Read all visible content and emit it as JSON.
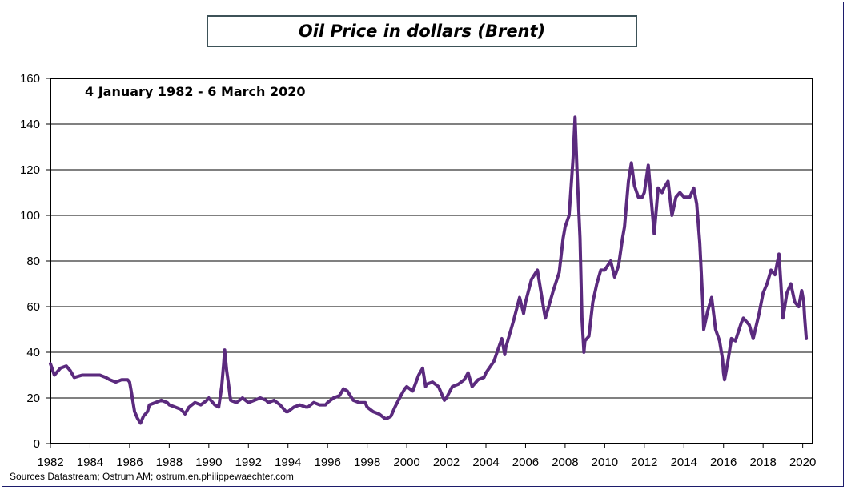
{
  "title": "Oil Price  in dollars (Brent)",
  "source": "Sources Datastream; Ostrum AM;  ostrum.en.philippewaechter.com",
  "colors": {
    "series": "#5b2a7e",
    "grid": "#000000",
    "frame": "#1c1c6b",
    "title_border": "#3d5258"
  },
  "chart_data": {
    "type": "line",
    "title": "Oil Price  in dollars (Brent)",
    "subtitle": "4 January 1982 - 6 March 2020",
    "xlabel": "",
    "ylabel": "",
    "xlim": [
      1982,
      2020.5
    ],
    "ylim": [
      0,
      160
    ],
    "grid": "horizontal",
    "x_ticks": [
      "1982",
      "1984",
      "1986",
      "1988",
      "1990",
      "1992",
      "1994",
      "1996",
      "1998",
      "2000",
      "2002",
      "2004",
      "2006",
      "2008",
      "2010",
      "2012",
      "2014",
      "2016",
      "2018",
      "2020"
    ],
    "y_ticks": [
      "0",
      "20",
      "40",
      "60",
      "80",
      "100",
      "120",
      "140",
      "160"
    ],
    "series": [
      {
        "points": [
          [
            1982.0,
            35
          ],
          [
            1982.2,
            30
          ],
          [
            1982.5,
            33
          ],
          [
            1982.8,
            34
          ],
          [
            1983.0,
            32
          ],
          [
            1983.2,
            29
          ],
          [
            1983.6,
            30
          ],
          [
            1984.0,
            30
          ],
          [
            1984.5,
            30
          ],
          [
            1984.8,
            29
          ],
          [
            1985.0,
            28
          ],
          [
            1985.3,
            27
          ],
          [
            1985.6,
            28
          ],
          [
            1985.9,
            28
          ],
          [
            1986.0,
            27
          ],
          [
            1986.1,
            22
          ],
          [
            1986.25,
            14
          ],
          [
            1986.4,
            11
          ],
          [
            1986.55,
            9
          ],
          [
            1986.7,
            12
          ],
          [
            1986.9,
            14
          ],
          [
            1987.0,
            17
          ],
          [
            1987.3,
            18
          ],
          [
            1987.6,
            19
          ],
          [
            1987.9,
            18
          ],
          [
            1988.0,
            17
          ],
          [
            1988.3,
            16
          ],
          [
            1988.6,
            15
          ],
          [
            1988.8,
            13
          ],
          [
            1989.0,
            16
          ],
          [
            1989.3,
            18
          ],
          [
            1989.6,
            17
          ],
          [
            1989.9,
            19
          ],
          [
            1990.0,
            20
          ],
          [
            1990.3,
            17
          ],
          [
            1990.5,
            16
          ],
          [
            1990.65,
            25
          ],
          [
            1990.75,
            35
          ],
          [
            1990.8,
            41
          ],
          [
            1990.9,
            32
          ],
          [
            1991.0,
            26
          ],
          [
            1991.1,
            19
          ],
          [
            1991.4,
            18
          ],
          [
            1991.7,
            20
          ],
          [
            1992.0,
            18
          ],
          [
            1992.3,
            19
          ],
          [
            1992.6,
            20
          ],
          [
            1992.9,
            19
          ],
          [
            1993.0,
            18
          ],
          [
            1993.3,
            19
          ],
          [
            1993.6,
            17
          ],
          [
            1993.9,
            14
          ],
          [
            1994.0,
            14
          ],
          [
            1994.3,
            16
          ],
          [
            1994.6,
            17
          ],
          [
            1994.9,
            16
          ],
          [
            1995.0,
            16
          ],
          [
            1995.3,
            18
          ],
          [
            1995.6,
            17
          ],
          [
            1995.9,
            17
          ],
          [
            1996.0,
            18
          ],
          [
            1996.3,
            20
          ],
          [
            1996.6,
            21
          ],
          [
            1996.8,
            24
          ],
          [
            1997.0,
            23
          ],
          [
            1997.3,
            19
          ],
          [
            1997.6,
            18
          ],
          [
            1997.9,
            18
          ],
          [
            1998.0,
            16
          ],
          [
            1998.3,
            14
          ],
          [
            1998.6,
            13
          ],
          [
            1998.9,
            11
          ],
          [
            1999.0,
            11
          ],
          [
            1999.2,
            12
          ],
          [
            1999.4,
            16
          ],
          [
            1999.7,
            21
          ],
          [
            1999.9,
            24
          ],
          [
            2000.0,
            25
          ],
          [
            2000.3,
            23
          ],
          [
            2000.6,
            30
          ],
          [
            2000.8,
            33
          ],
          [
            2000.95,
            25
          ],
          [
            2001.0,
            26
          ],
          [
            2001.3,
            27
          ],
          [
            2001.6,
            25
          ],
          [
            2001.9,
            19
          ],
          [
            2002.0,
            20
          ],
          [
            2002.3,
            25
          ],
          [
            2002.6,
            26
          ],
          [
            2002.9,
            28
          ],
          [
            2003.1,
            31
          ],
          [
            2003.3,
            25
          ],
          [
            2003.6,
            28
          ],
          [
            2003.9,
            29
          ],
          [
            2004.0,
            31
          ],
          [
            2004.4,
            36
          ],
          [
            2004.8,
            46
          ],
          [
            2004.95,
            39
          ],
          [
            2005.0,
            42
          ],
          [
            2005.4,
            54
          ],
          [
            2005.7,
            64
          ],
          [
            2005.9,
            57
          ],
          [
            2006.0,
            62
          ],
          [
            2006.3,
            72
          ],
          [
            2006.6,
            76
          ],
          [
            2006.9,
            60
          ],
          [
            2007.0,
            55
          ],
          [
            2007.4,
            67
          ],
          [
            2007.7,
            75
          ],
          [
            2007.9,
            90
          ],
          [
            2008.0,
            95
          ],
          [
            2008.2,
            100
          ],
          [
            2008.4,
            125
          ],
          [
            2008.5,
            143
          ],
          [
            2008.6,
            120
          ],
          [
            2008.75,
            90
          ],
          [
            2008.85,
            55
          ],
          [
            2008.95,
            40
          ],
          [
            2009.0,
            45
          ],
          [
            2009.2,
            47
          ],
          [
            2009.4,
            62
          ],
          [
            2009.6,
            70
          ],
          [
            2009.8,
            76
          ],
          [
            2010.0,
            76
          ],
          [
            2010.3,
            80
          ],
          [
            2010.5,
            73
          ],
          [
            2010.7,
            78
          ],
          [
            2010.9,
            90
          ],
          [
            2011.0,
            95
          ],
          [
            2011.2,
            115
          ],
          [
            2011.35,
            123
          ],
          [
            2011.5,
            113
          ],
          [
            2011.7,
            108
          ],
          [
            2011.9,
            108
          ],
          [
            2012.0,
            110
          ],
          [
            2012.2,
            122
          ],
          [
            2012.4,
            102
          ],
          [
            2012.5,
            92
          ],
          [
            2012.7,
            112
          ],
          [
            2012.9,
            110
          ],
          [
            2013.0,
            112
          ],
          [
            2013.2,
            115
          ],
          [
            2013.4,
            100
          ],
          [
            2013.6,
            108
          ],
          [
            2013.8,
            110
          ],
          [
            2014.0,
            108
          ],
          [
            2014.3,
            108
          ],
          [
            2014.5,
            112
          ],
          [
            2014.65,
            105
          ],
          [
            2014.8,
            88
          ],
          [
            2014.95,
            62
          ],
          [
            2015.0,
            50
          ],
          [
            2015.2,
            58
          ],
          [
            2015.4,
            64
          ],
          [
            2015.6,
            50
          ],
          [
            2015.8,
            45
          ],
          [
            2015.95,
            37
          ],
          [
            2016.0,
            31
          ],
          [
            2016.05,
            28
          ],
          [
            2016.2,
            35
          ],
          [
            2016.4,
            46
          ],
          [
            2016.6,
            45
          ],
          [
            2016.9,
            53
          ],
          [
            2017.0,
            55
          ],
          [
            2017.3,
            52
          ],
          [
            2017.5,
            46
          ],
          [
            2017.8,
            57
          ],
          [
            2018.0,
            66
          ],
          [
            2018.2,
            70
          ],
          [
            2018.4,
            76
          ],
          [
            2018.6,
            74
          ],
          [
            2018.8,
            83
          ],
          [
            2018.9,
            70
          ],
          [
            2019.0,
            55
          ],
          [
            2019.2,
            66
          ],
          [
            2019.4,
            70
          ],
          [
            2019.6,
            62
          ],
          [
            2019.8,
            60
          ],
          [
            2019.95,
            67
          ],
          [
            2020.05,
            62
          ],
          [
            2020.1,
            55
          ],
          [
            2020.18,
            46
          ]
        ]
      }
    ]
  }
}
